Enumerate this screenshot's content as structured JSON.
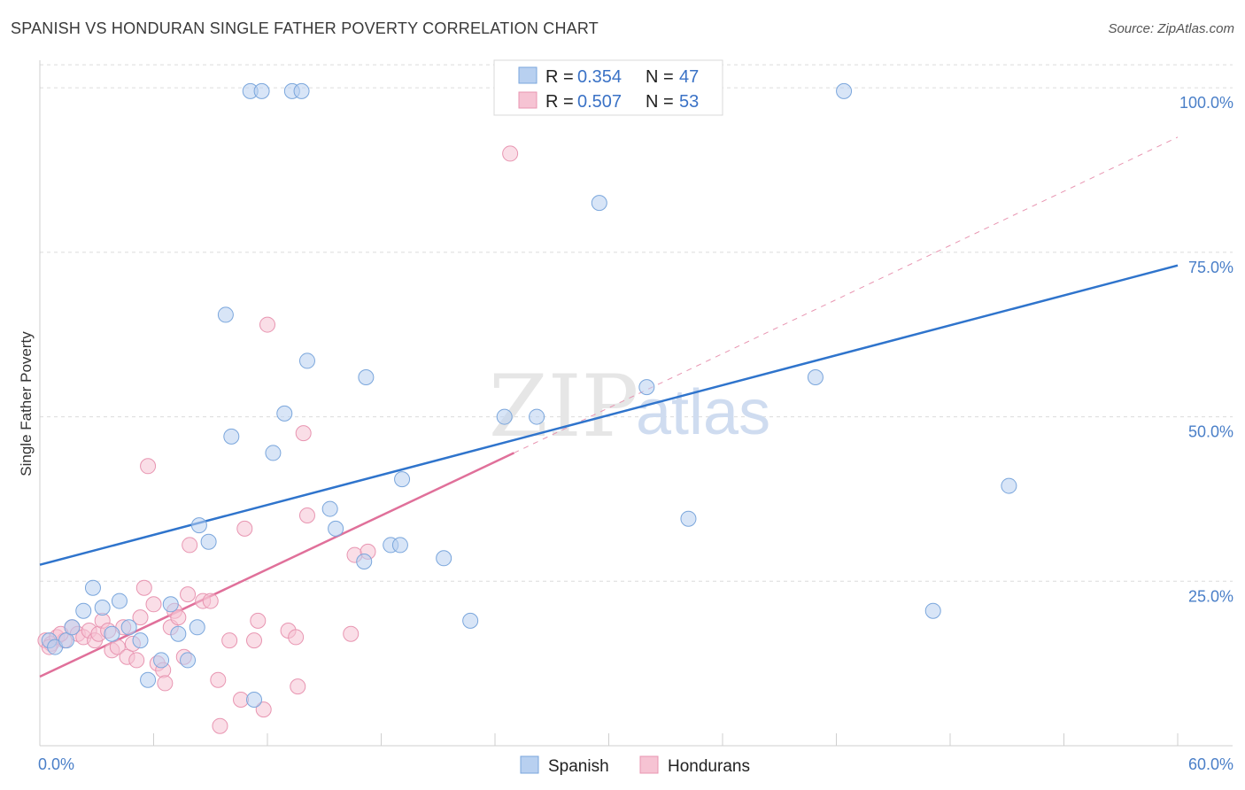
{
  "title": "SPANISH VS HONDURAN SINGLE FATHER POVERTY CORRELATION CHART",
  "source": "Source: ZipAtlas.com",
  "watermark": {
    "zip": "ZIP",
    "atlas": "atlas"
  },
  "colors": {
    "spanish_fill": "#b8d0f0",
    "spanish_stroke": "#7aa6dc",
    "spanish_line": "#2f74cc",
    "honduran_fill": "#f6c3d3",
    "honduran_stroke": "#e895b1",
    "honduran_line": "#e0709a",
    "grid": "#dcdcdc",
    "tick_text": "#4a7fc8"
  },
  "legend": {
    "rows": [
      {
        "r_label": "R =",
        "r_value": "0.354",
        "n_label": "N =",
        "n_value": "47"
      },
      {
        "r_label": "R =",
        "r_value": "0.507",
        "n_label": "N =",
        "n_value": "53"
      }
    ]
  },
  "chart_data": {
    "type": "scatter",
    "title": "SPANISH VS HONDURAN SINGLE FATHER POVERTY CORRELATION CHART",
    "xlabel": "",
    "ylabel": "Single Father Poverty",
    "xlim": [
      0,
      60
    ],
    "ylim": [
      0,
      105
    ],
    "x_tick_labels": [
      "0.0%",
      "60.0%"
    ],
    "y_ticks": [
      25,
      50,
      75,
      100
    ],
    "y_tick_labels": [
      "25.0%",
      "50.0%",
      "75.0%",
      "100.0%"
    ],
    "grid": true,
    "legend_position": "top-center",
    "series": [
      {
        "name": "Spanish",
        "trend": {
          "x0": 0,
          "y0": 27.5,
          "x1": 60,
          "y1": 73
        },
        "points": [
          [
            0.5,
            16
          ],
          [
            0.8,
            15
          ],
          [
            1.4,
            16
          ],
          [
            1.7,
            18
          ],
          [
            2.3,
            20.5
          ],
          [
            2.8,
            24
          ],
          [
            3.3,
            21
          ],
          [
            3.8,
            17
          ],
          [
            4.2,
            22
          ],
          [
            4.7,
            18
          ],
          [
            5.3,
            16
          ],
          [
            5.7,
            10
          ],
          [
            6.4,
            13
          ],
          [
            6.9,
            21.5
          ],
          [
            7.3,
            17
          ],
          [
            7.8,
            13
          ],
          [
            8.3,
            18
          ],
          [
            8.4,
            33.5
          ],
          [
            8.9,
            31
          ],
          [
            9.8,
            65.5
          ],
          [
            10.1,
            47
          ],
          [
            11.3,
            7
          ],
          [
            11.1,
            99.5
          ],
          [
            11.7,
            99.5
          ],
          [
            12.3,
            44.5
          ],
          [
            12.9,
            50.5
          ],
          [
            13.3,
            99.5
          ],
          [
            13.8,
            99.5
          ],
          [
            14.1,
            58.5
          ],
          [
            15.3,
            36
          ],
          [
            15.6,
            33
          ],
          [
            17.1,
            28
          ],
          [
            17.2,
            56
          ],
          [
            18.5,
            30.5
          ],
          [
            19.0,
            30.5
          ],
          [
            19.1,
            40.5
          ],
          [
            21.3,
            28.5
          ],
          [
            22.7,
            19
          ],
          [
            24.5,
            50
          ],
          [
            26.2,
            50
          ],
          [
            29.5,
            82.5
          ],
          [
            32.0,
            54.5
          ],
          [
            34.2,
            34.5
          ],
          [
            40.9,
            56
          ],
          [
            42.4,
            99.5
          ],
          [
            47.1,
            20.5
          ],
          [
            51.1,
            39.5
          ]
        ]
      },
      {
        "name": "Hondurans",
        "trend": {
          "x0": 0,
          "y0": 10.5,
          "x1": 25,
          "y1": 44.5,
          "dash_to_x": 60,
          "dash_to_y": 92.5
        },
        "points": [
          [
            0.3,
            16
          ],
          [
            0.6,
            15.5
          ],
          [
            0.9,
            16.5
          ],
          [
            1.3,
            16
          ],
          [
            1.7,
            18
          ],
          [
            2.0,
            17
          ],
          [
            2.3,
            16.5
          ],
          [
            2.6,
            17.5
          ],
          [
            2.9,
            16
          ],
          [
            3.1,
            17
          ],
          [
            3.3,
            19
          ],
          [
            3.6,
            17.5
          ],
          [
            3.8,
            14.5
          ],
          [
            4.1,
            15
          ],
          [
            4.4,
            18
          ],
          [
            4.6,
            13.5
          ],
          [
            4.9,
            15.5
          ],
          [
            5.1,
            13
          ],
          [
            5.3,
            19.5
          ],
          [
            5.5,
            24
          ],
          [
            5.7,
            42.5
          ],
          [
            6.0,
            21.5
          ],
          [
            6.2,
            12.5
          ],
          [
            6.5,
            11.5
          ],
          [
            6.6,
            9.5
          ],
          [
            6.9,
            18
          ],
          [
            7.1,
            20.5
          ],
          [
            7.3,
            19.5
          ],
          [
            7.6,
            13.5
          ],
          [
            7.8,
            23
          ],
          [
            7.9,
            30.5
          ],
          [
            8.6,
            22
          ],
          [
            9.0,
            22
          ],
          [
            9.4,
            10
          ],
          [
            9.5,
            3
          ],
          [
            10.0,
            16
          ],
          [
            10.6,
            7
          ],
          [
            10.8,
            33
          ],
          [
            11.3,
            16
          ],
          [
            11.5,
            19
          ],
          [
            11.8,
            5.5
          ],
          [
            12.0,
            64
          ],
          [
            13.1,
            17.5
          ],
          [
            13.6,
            9
          ],
          [
            13.9,
            47.5
          ],
          [
            14.1,
            35
          ],
          [
            16.4,
            17
          ],
          [
            16.6,
            29
          ],
          [
            17.3,
            29.5
          ],
          [
            24.8,
            90
          ],
          [
            0.5,
            15
          ],
          [
            1.1,
            17
          ],
          [
            13.5,
            16.5
          ]
        ]
      }
    ]
  },
  "bottom_legend": {
    "spanish": "Spanish",
    "hondurans": "Hondurans"
  }
}
